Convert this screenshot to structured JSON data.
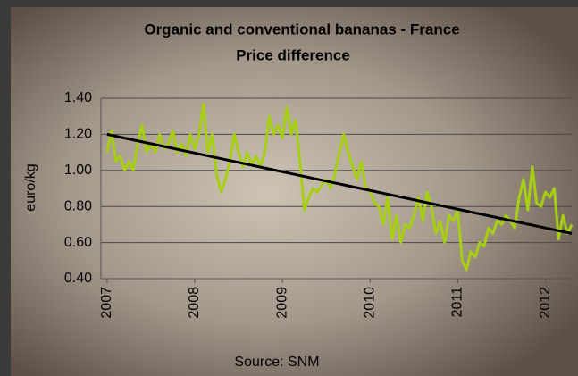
{
  "chart_data": {
    "type": "line",
    "title": "Organic and conventional bananas - France",
    "subtitle": "Price difference",
    "ylabel": "euro/kg",
    "source": "Source: SNM",
    "x": [
      2007.0,
      2007.05,
      2007.1,
      2007.15,
      2007.2,
      2007.25,
      2007.3,
      2007.35,
      2007.4,
      2007.45,
      2007.5,
      2007.55,
      2007.6,
      2007.65,
      2007.7,
      2007.75,
      2007.8,
      2007.85,
      2007.9,
      2007.95,
      2008.0,
      2008.05,
      2008.1,
      2008.15,
      2008.2,
      2008.25,
      2008.3,
      2008.35,
      2008.4,
      2008.45,
      2008.5,
      2008.55,
      2008.6,
      2008.65,
      2008.7,
      2008.75,
      2008.8,
      2008.85,
      2008.9,
      2008.95,
      2009.0,
      2009.05,
      2009.1,
      2009.15,
      2009.2,
      2009.25,
      2009.3,
      2009.35,
      2009.4,
      2009.45,
      2009.5,
      2009.55,
      2009.6,
      2009.65,
      2009.7,
      2009.75,
      2009.8,
      2009.85,
      2009.9,
      2009.95,
      2010.0,
      2010.05,
      2010.1,
      2010.15,
      2010.2,
      2010.25,
      2010.3,
      2010.35,
      2010.4,
      2010.45,
      2010.5,
      2010.55,
      2010.6,
      2010.65,
      2010.7,
      2010.75,
      2010.8,
      2010.85,
      2010.9,
      2010.95,
      2011.0,
      2011.05,
      2011.1,
      2011.15,
      2011.2,
      2011.25,
      2011.3,
      2011.35,
      2011.4,
      2011.45,
      2011.5,
      2011.55,
      2011.6,
      2011.65,
      2011.7,
      2011.75,
      2011.8,
      2011.85,
      2011.9,
      2011.95,
      2012.0,
      2012.05,
      2012.1,
      2012.15,
      2012.2,
      2012.25,
      2012.3
    ],
    "series": [
      {
        "color": "#a6cf12",
        "values": [
          1.1,
          1.22,
          1.05,
          1.08,
          1.0,
          1.05,
          1.0,
          1.15,
          1.25,
          1.1,
          1.15,
          1.1,
          1.2,
          1.12,
          1.15,
          1.22,
          1.1,
          1.15,
          1.08,
          1.2,
          1.12,
          1.2,
          1.37,
          1.1,
          1.2,
          0.98,
          0.88,
          0.95,
          1.05,
          1.2,
          1.1,
          1.02,
          1.1,
          1.03,
          1.08,
          1.02,
          1.1,
          1.3,
          1.2,
          1.25,
          1.18,
          1.35,
          1.2,
          1.28,
          1.05,
          0.78,
          0.85,
          0.9,
          0.88,
          0.92,
          0.95,
          0.9,
          0.98,
          1.1,
          1.2,
          1.1,
          1.02,
          0.95,
          1.05,
          0.9,
          0.88,
          0.82,
          0.8,
          0.7,
          0.85,
          0.62,
          0.75,
          0.6,
          0.7,
          0.68,
          0.75,
          0.85,
          0.72,
          0.88,
          0.8,
          0.65,
          0.72,
          0.6,
          0.75,
          0.72,
          0.78,
          0.5,
          0.45,
          0.55,
          0.52,
          0.6,
          0.58,
          0.68,
          0.65,
          0.72,
          0.7,
          0.75,
          0.72,
          0.68,
          0.85,
          0.95,
          0.78,
          1.02,
          0.82,
          0.8,
          0.88,
          0.85,
          0.9,
          0.62,
          0.75,
          0.65,
          0.7
        ]
      }
    ],
    "trend_line": {
      "color": "#000000",
      "x": [
        2007.0,
        2012.3
      ],
      "values": [
        1.2,
        0.65
      ]
    },
    "xlim": [
      2006.93,
      2012.3
    ],
    "xticks": [
      2007,
      2008,
      2009,
      2010,
      2011,
      2012
    ],
    "ylim": [
      0.4,
      1.4
    ],
    "yticks": [
      {
        "value": 0.4,
        "label": "0.40"
      },
      {
        "value": 0.6,
        "label": "0.60"
      },
      {
        "value": 0.8,
        "label": "0.80"
      },
      {
        "value": 1.0,
        "label": "1.00"
      },
      {
        "value": 1.2,
        "label": "1.20"
      },
      {
        "value": 1.4,
        "label": "1.40"
      }
    ],
    "grid": true
  }
}
